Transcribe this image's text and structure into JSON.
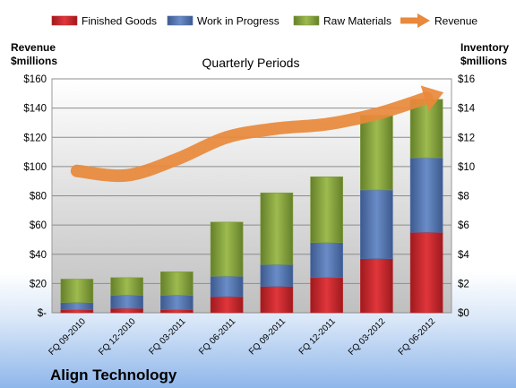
{
  "chart_data": {
    "type": "bar",
    "stacked": true,
    "subtitle": "Quarterly Periods",
    "company": "Align Technology",
    "left_axis_label": [
      "Revenue",
      "$millions"
    ],
    "right_axis_label": [
      "Inventory",
      "$millions"
    ],
    "categories": [
      "FQ 09-2010",
      "FQ 12-2010",
      "FQ 03-2011",
      "FQ 06-2011",
      "FQ 09-2011",
      "FQ 12-2011",
      "FQ 03-2012",
      "FQ 06-2012"
    ],
    "series": [
      {
        "name": "Finished Goods",
        "axis": "right",
        "color": "#c0282d",
        "values": [
          0.2,
          0.3,
          0.2,
          1.1,
          1.8,
          2.4,
          3.7,
          5.5
        ]
      },
      {
        "name": "Work in Progress",
        "axis": "right",
        "color": "#4f6fa8",
        "values": [
          0.5,
          0.9,
          1.0,
          1.4,
          1.5,
          2.4,
          4.7,
          5.1
        ]
      },
      {
        "name": "Raw Materials",
        "axis": "right",
        "color": "#7f9c3a",
        "values": [
          1.6,
          1.2,
          1.6,
          3.7,
          4.9,
          4.5,
          5.1,
          4.0
        ]
      }
    ],
    "revenue": {
      "name": "Revenue",
      "axis": "left",
      "color": "#e8893b",
      "values": [
        97,
        94,
        105,
        120,
        126,
        129,
        136,
        147
      ]
    },
    "left_ticks": [
      "$-",
      "$20",
      "$40",
      "$60",
      "$80",
      "$100",
      "$120",
      "$140",
      "$160"
    ],
    "right_ticks": [
      "$0",
      "$2",
      "$4",
      "$6",
      "$8",
      "$10",
      "$12",
      "$14",
      "$16"
    ],
    "ylim_left": [
      0,
      160
    ],
    "ylim_right": [
      0,
      16
    ],
    "legend_position": "top"
  }
}
